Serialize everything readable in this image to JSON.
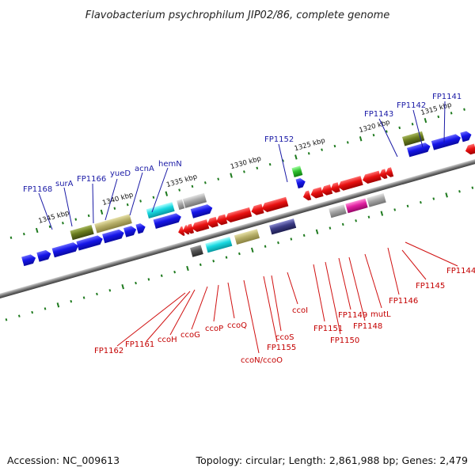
{
  "title": "Flavobacterium psychrophilum JIP02/86, complete genome",
  "footer": {
    "accession": "Accession: NC_009613",
    "summary": "Topology: circular; Length: 2,861,988 bp; Genes: 2,479"
  },
  "kbp_labels": [
    "1315 kbp",
    "1320 kbp",
    "1325 kbp",
    "1330 kbp",
    "1335 kbp",
    "1340 kbp",
    "1345 kbp"
  ],
  "top_gene_labels": [
    "FP1141",
    "FP1142",
    "FP1143",
    "FP1152",
    "FP1166",
    "FP1168",
    "surA",
    "yueD",
    "acnA",
    "hemN"
  ],
  "bottom_gene_labels": [
    "FP1144",
    "FP1145",
    "FP1146",
    "mutL",
    "FP1148",
    "FP1149",
    "FP1150",
    "FP1151",
    "ccoI",
    "ccoS",
    "FP1155",
    "ccoN/ccoO",
    "ccoQ",
    "ccoP",
    "ccoG",
    "ccoH",
    "FP1161",
    "FP1162"
  ],
  "colors": {
    "axis": "#7a7a7a",
    "tick": "#1e7a1e",
    "top_label": "#1a1aa6",
    "bottom_label": "#c40000",
    "gene_blue": "#1515e8",
    "gene_red": "#e81010",
    "gene_olive": "#6b7d1e",
    "gene_khaki": "#b8b06a",
    "gene_cyan": "#18d8e0",
    "gene_magenta": "#e020a0",
    "gene_gray": "#a8a8a8",
    "gene_darkgray": "#555555",
    "gene_slate": "#3c3c86",
    "gene_green": "#30c030"
  }
}
